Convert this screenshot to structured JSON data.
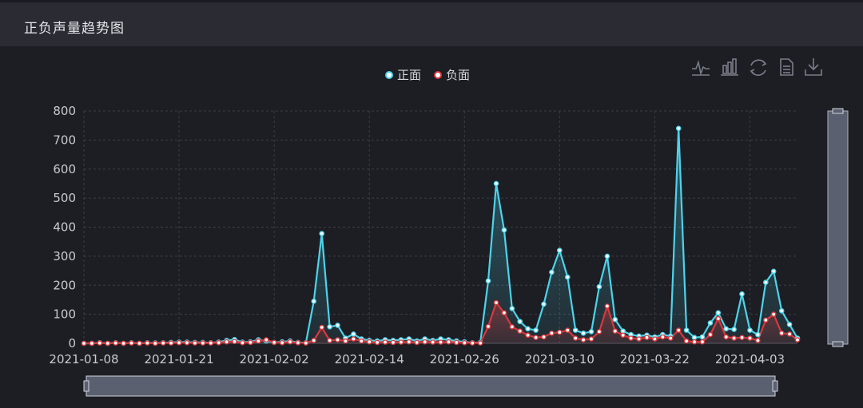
{
  "panel": {
    "title": "正负声量趋势图"
  },
  "toolbox": [
    "line-chart-icon",
    "bar-chart-icon",
    "refresh-icon",
    "data-view-icon",
    "download-icon"
  ],
  "colors": {
    "positive": "#4dd3ea",
    "negative": "#d9383d",
    "grid": "#3c3e46",
    "text": "#c9cad0",
    "zoom": "#5b6070"
  },
  "chart_data": {
    "type": "line",
    "title": "",
    "xlabel": "",
    "ylabel": "",
    "ylim": [
      0,
      800
    ],
    "yticks": [
      "800",
      "700",
      "600",
      "500",
      "400",
      "300",
      "200",
      "100",
      "0"
    ],
    "x_tick_labels": [
      "2021-01-08",
      "2021-01-21",
      "2021-02-02",
      "2021-02-14",
      "2021-02-26",
      "2021-03-10",
      "2021-03-22",
      "2021-04-03"
    ],
    "legend": {
      "position": "top-center",
      "items": [
        {
          "name": "正面"
        },
        {
          "name": "负面"
        }
      ]
    },
    "series": [
      {
        "name": "正面",
        "values": [
          0,
          0,
          2,
          0,
          2,
          0,
          2,
          0,
          2,
          1,
          2,
          3,
          4,
          4,
          3,
          3,
          2,
          4,
          10,
          13,
          4,
          5,
          12,
          8,
          3,
          5,
          8,
          3,
          2,
          145,
          378,
          57,
          62,
          18,
          32,
          15,
          10,
          8,
          12,
          10,
          12,
          15,
          8,
          15,
          10,
          15,
          12,
          8,
          5,
          2,
          3,
          215,
          550,
          390,
          120,
          75,
          50,
          45,
          135,
          245,
          320,
          228,
          45,
          35,
          40,
          195,
          300,
          82,
          42,
          30,
          25,
          28,
          22,
          30,
          25,
          740,
          45,
          20,
          22,
          70,
          105,
          50,
          48,
          170,
          45,
          30,
          210,
          248,
          112,
          65,
          18
        ]
      },
      {
        "name": "负面",
        "values": [
          0,
          0,
          1,
          0,
          1,
          0,
          1,
          0,
          1,
          0,
          1,
          1,
          2,
          2,
          1,
          1,
          1,
          2,
          5,
          6,
          2,
          3,
          8,
          12,
          3,
          2,
          5,
          2,
          1,
          10,
          55,
          10,
          12,
          8,
          15,
          8,
          5,
          3,
          4,
          3,
          4,
          5,
          3,
          5,
          4,
          4,
          5,
          3,
          2,
          1,
          1,
          58,
          140,
          105,
          57,
          42,
          28,
          20,
          22,
          35,
          38,
          45,
          18,
          12,
          15,
          40,
          128,
          42,
          28,
          18,
          15,
          20,
          15,
          22,
          18,
          45,
          8,
          5,
          5,
          30,
          85,
          22,
          18,
          20,
          18,
          10,
          80,
          100,
          35,
          32,
          12
        ]
      }
    ]
  }
}
